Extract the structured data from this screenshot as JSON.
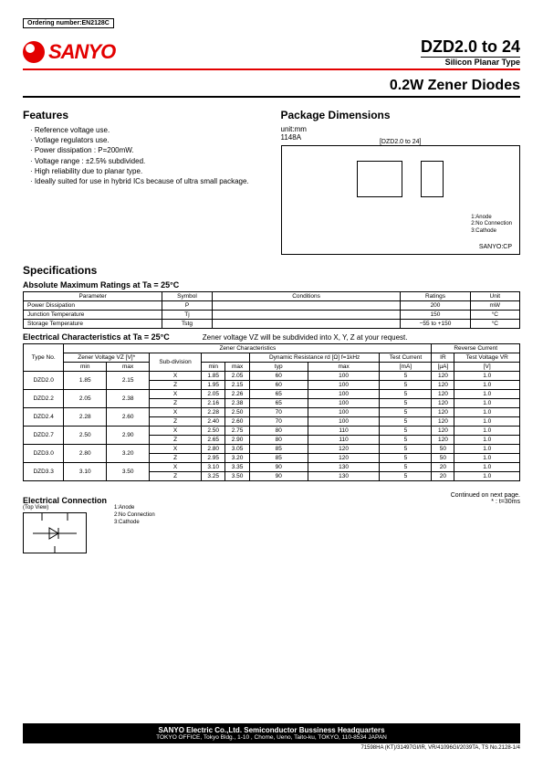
{
  "ordering": "Ordering number:EN2128C",
  "logo_text": "SANYO",
  "title": "DZD2.0 to 24",
  "subtitle": "Silicon Planar Type",
  "product": "0.2W Zener Diodes",
  "features_heading": "Features",
  "features": [
    "Reference voltage use.",
    "Votlage regulators use.",
    "Power dissipation : P=200mW.",
    "Voltage range : ±2.5% subdivided.",
    "High reliability due to planar type.",
    "Ideally suited for use in hybrid ICs because of ultra small package."
  ],
  "pkg_heading": "Package Dimensions",
  "pkg_unit": "unit:mm",
  "pkg_code": "1148A",
  "pkg_model": "[DZD2.0 to 24]",
  "pkg_pins": {
    "1": "1:Anode",
    "2": "2:No Connection",
    "3": "3:Cathode"
  },
  "pkg_brand": "SANYO:CP",
  "specs_heading": "Specifications",
  "abs_heading": "Absolute Maximum Ratings at Ta = 25°C",
  "abs_table": {
    "headers": [
      "Parameter",
      "Symbol",
      "Conditions",
      "Ratings",
      "Unit"
    ],
    "rows": [
      [
        "Power Dissipation",
        "P",
        "",
        "200",
        "mW"
      ],
      [
        "Junction Temperature",
        "Tj",
        "",
        "150",
        "°C"
      ],
      [
        "Storage Temperature",
        "Tstg",
        "",
        "−55 to +150",
        "°C"
      ]
    ]
  },
  "elec_heading": "Electrical Characteristics at Ta = 25°C",
  "zener_note": "Zener voltage VZ will be subdivided into X, Y, Z at your request.",
  "elec_table": {
    "h1": {
      "typeno": "Type No.",
      "zc": "Zener Characteristics",
      "rc": "Reverse Current"
    },
    "h2": {
      "zv": "Zener Voltage VZ [V]*",
      "sub": "Sub-division",
      "dr": "Dynamic Resistance rd [Ω] f=1kHz",
      "tc": "Test Current",
      "ir": "IR",
      "tv": "Test Voltage VR"
    },
    "h3": {
      "min": "min",
      "max": "max",
      "typ": "typ",
      "ma": "[mA]",
      "ua": "[µA]",
      "v": "[V]"
    },
    "rows": [
      {
        "type": "DZD2.0",
        "min": "1.85",
        "max": "2.15",
        "sub": "X",
        "smin": "1.85",
        "smax": "2.05",
        "typ": "60",
        "dmax": "100",
        "tc": "5",
        "ir": "120",
        "vr": "1.0"
      },
      {
        "type": "",
        "min": "",
        "max": "",
        "sub": "Z",
        "smin": "1.95",
        "smax": "2.15",
        "typ": "60",
        "dmax": "100",
        "tc": "5",
        "ir": "120",
        "vr": "1.0"
      },
      {
        "type": "DZD2.2",
        "min": "2.05",
        "max": "2.38",
        "sub": "X",
        "smin": "2.05",
        "smax": "2.26",
        "typ": "65",
        "dmax": "100",
        "tc": "5",
        "ir": "120",
        "vr": "1.0"
      },
      {
        "type": "",
        "min": "",
        "max": "",
        "sub": "Z",
        "smin": "2.16",
        "smax": "2.38",
        "typ": "65",
        "dmax": "100",
        "tc": "5",
        "ir": "120",
        "vr": "1.0"
      },
      {
        "type": "DZD2.4",
        "min": "2.28",
        "max": "2.60",
        "sub": "X",
        "smin": "2.28",
        "smax": "2.50",
        "typ": "70",
        "dmax": "100",
        "tc": "5",
        "ir": "120",
        "vr": "1.0"
      },
      {
        "type": "",
        "min": "",
        "max": "",
        "sub": "Z",
        "smin": "2.40",
        "smax": "2.60",
        "typ": "70",
        "dmax": "100",
        "tc": "5",
        "ir": "120",
        "vr": "1.0"
      },
      {
        "type": "DZD2.7",
        "min": "2.50",
        "max": "2.90",
        "sub": "X",
        "smin": "2.50",
        "smax": "2.75",
        "typ": "80",
        "dmax": "110",
        "tc": "5",
        "ir": "120",
        "vr": "1.0"
      },
      {
        "type": "",
        "min": "",
        "max": "",
        "sub": "Z",
        "smin": "2.65",
        "smax": "2.90",
        "typ": "80",
        "dmax": "110",
        "tc": "5",
        "ir": "120",
        "vr": "1.0"
      },
      {
        "type": "DZD3.0",
        "min": "2.80",
        "max": "3.20",
        "sub": "X",
        "smin": "2.80",
        "smax": "3.05",
        "typ": "85",
        "dmax": "120",
        "tc": "5",
        "ir": "50",
        "vr": "1.0"
      },
      {
        "type": "",
        "min": "",
        "max": "",
        "sub": "Z",
        "smin": "2.95",
        "smax": "3.20",
        "typ": "85",
        "dmax": "120",
        "tc": "5",
        "ir": "50",
        "vr": "1.0"
      },
      {
        "type": "DZD3.3",
        "min": "3.10",
        "max": "3.50",
        "sub": "X",
        "smin": "3.10",
        "smax": "3.35",
        "typ": "90",
        "dmax": "130",
        "tc": "5",
        "ir": "20",
        "vr": "1.0"
      },
      {
        "type": "",
        "min": "",
        "max": "",
        "sub": "Z",
        "smin": "3.25",
        "smax": "3.50",
        "typ": "90",
        "dmax": "130",
        "tc": "5",
        "ir": "20",
        "vr": "1.0"
      }
    ]
  },
  "conn_heading": "Electrical Connection",
  "topview": "(Top View)",
  "continued": "Continued on next page.",
  "continued2": "* : t=30ms",
  "footer_company": "SANYO Electric Co.,Ltd. Semiconductor Bussiness Headquarters",
  "footer_addr": "TOKYO OFFICE, Tokyo Bldg., 1-10 , Chome, Ueno, Taito-ku, TOKYO, 110-8534 JAPAN",
  "footer_code": "71598HA (KT)/31497GI/IR, VR/41096GI/2039TA, TS  No.2128-1/4"
}
